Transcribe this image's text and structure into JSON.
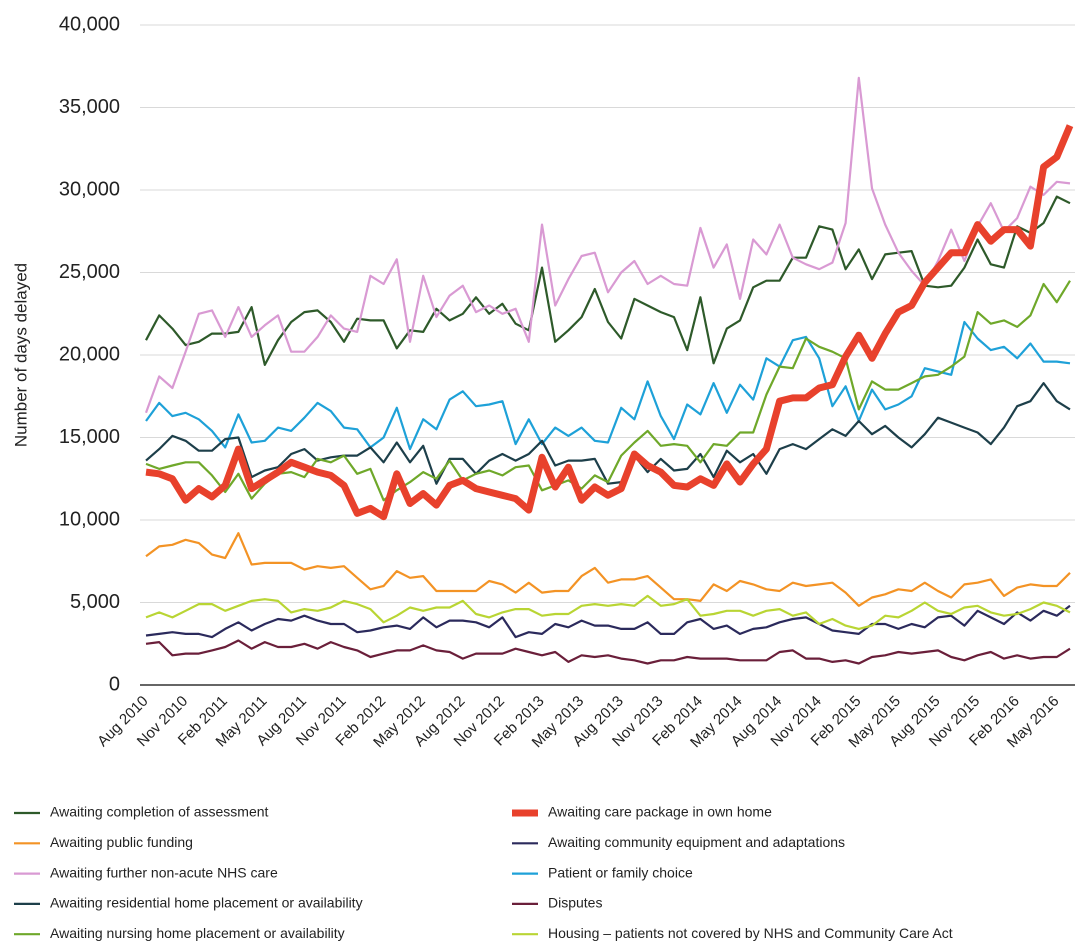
{
  "chart_data": {
    "type": "line",
    "y_label": "Number of days delayed",
    "categories": [
      "Aug 2010",
      null,
      null,
      "Nov 2010",
      null,
      null,
      "Feb 2011",
      null,
      null,
      "May 2011",
      null,
      null,
      "Aug 2011",
      null,
      null,
      "Nov 2011",
      null,
      null,
      "Feb 2012",
      null,
      null,
      "May 2012",
      null,
      null,
      "Aug 2012",
      null,
      null,
      "Nov 2012",
      null,
      null,
      "Feb 2013",
      null,
      null,
      "May 2013",
      null,
      null,
      "Aug 2013",
      null,
      null,
      "Nov 2013",
      null,
      null,
      "Feb 2014",
      null,
      null,
      "May 2014",
      null,
      null,
      "Aug 2014",
      null,
      null,
      "Nov 2014",
      null,
      null,
      "Feb 2015",
      null,
      null,
      "May 2015",
      null,
      null,
      "Aug 2015",
      null,
      null,
      "Nov 2015",
      null,
      null,
      "Feb 2016",
      null,
      null,
      "May 2016",
      null
    ],
    "ylim": [
      0,
      40000
    ],
    "yticks": [
      0,
      {
        "value": 5000,
        "label": "5,000"
      },
      {
        "value": 10000,
        "label": "10,000"
      },
      {
        "value": 15000,
        "label": "15,000"
      },
      {
        "value": 20000,
        "label": "20,000"
      },
      {
        "value": 25000,
        "label": "25,000"
      },
      {
        "value": 30000,
        "label": "30,000"
      },
      {
        "value": 35000,
        "label": "35,000"
      },
      {
        "value": 40000,
        "label": "40,000"
      }
    ],
    "grid": true,
    "series": [
      {
        "name": "Awaiting completion of assessment",
        "color": "#2e5a2a",
        "values": [
          20900,
          22400,
          21600,
          20600,
          20800,
          21300,
          21300,
          21400,
          22900,
          19400,
          20900,
          22000,
          22600,
          22700,
          22000,
          20800,
          22200,
          22100,
          22100,
          20400,
          21500,
          21400,
          22800,
          22100,
          22500,
          23500,
          22500,
          23100,
          21900,
          21500,
          25300,
          20800,
          21500,
          22300,
          24000,
          22000,
          21000,
          23400,
          23000,
          22600,
          22300,
          20300,
          23500,
          19500,
          21600,
          22100,
          24100,
          24500,
          24500,
          25900,
          25900,
          27800,
          27600,
          25200,
          26400,
          24600,
          26100,
          26200,
          26300,
          24200,
          24100,
          24200,
          25300,
          27000,
          25500,
          25300,
          27800,
          27400,
          28000,
          29600,
          29200
        ]
      },
      {
        "name": "Awaiting care package in own home",
        "color": "#e8412c",
        "values": [
          12900,
          12800,
          12500,
          11200,
          11900,
          11400,
          12100,
          14300,
          11900,
          12400,
          12900,
          13500,
          13200,
          12900,
          12700,
          12100,
          10400,
          10700,
          10200,
          12800,
          11000,
          11600,
          10900,
          12100,
          12400,
          11900,
          11700,
          11500,
          11300,
          10600,
          13800,
          12000,
          13200,
          11200,
          12000,
          11500,
          11900,
          14000,
          13300,
          12900,
          12100,
          12000,
          12500,
          12100,
          13400,
          12300,
          13400,
          14300,
          17200,
          17400,
          17400,
          18000,
          18200,
          19900,
          21200,
          19800,
          21300,
          22600,
          23000,
          24400,
          25300,
          26200,
          26200,
          27900,
          26900,
          27600,
          27600,
          26600,
          31400,
          32000,
          33900
        ]
      },
      {
        "name": "Awaiting public funding",
        "color": "#f39325",
        "values": [
          7800,
          8400,
          8500,
          8800,
          8600,
          7900,
          7700,
          9200,
          7300,
          7400,
          7400,
          7400,
          7000,
          7200,
          7100,
          7200,
          6500,
          5800,
          6000,
          6900,
          6500,
          6600,
          5700,
          5700,
          5700,
          5700,
          6300,
          6100,
          5600,
          6200,
          5600,
          5700,
          5700,
          6600,
          7100,
          6200,
          6400,
          6400,
          6600,
          5900,
          5200,
          5200,
          5100,
          6100,
          5700,
          6300,
          6100,
          5800,
          5700,
          6200,
          6000,
          6100,
          6200,
          5600,
          4800,
          5300,
          5500,
          5800,
          5700,
          6200,
          5700,
          5300,
          6100,
          6200,
          6400,
          5400,
          5900,
          6100,
          6000,
          6000,
          6800
        ]
      },
      {
        "name": "Awaiting community equipment and adaptations",
        "color": "#2b2a5c",
        "values": [
          3000,
          3100,
          3200,
          3100,
          3100,
          2900,
          3400,
          3800,
          3300,
          3700,
          4000,
          3900,
          4200,
          3900,
          3700,
          3700,
          3200,
          3300,
          3500,
          3600,
          3400,
          4100,
          3500,
          3900,
          3900,
          3800,
          3500,
          4100,
          2900,
          3200,
          3100,
          3700,
          3500,
          3900,
          3600,
          3600,
          3400,
          3400,
          3800,
          3100,
          3100,
          3800,
          4000,
          3400,
          3600,
          3100,
          3400,
          3500,
          3800,
          4000,
          4100,
          3700,
          3300,
          3200,
          3100,
          3700,
          3700,
          3400,
          3700,
          3500,
          4100,
          4200,
          3600,
          4500,
          4100,
          3700,
          4400,
          3900,
          4500,
          4200,
          4800
        ]
      },
      {
        "name": "Awaiting further non-acute NHS care",
        "color": "#d99ad3",
        "values": [
          16500,
          18700,
          18000,
          20200,
          22500,
          22700,
          21100,
          22900,
          21100,
          21800,
          22400,
          20200,
          20200,
          21100,
          22400,
          21600,
          21400,
          24800,
          24300,
          25800,
          20800,
          24800,
          22300,
          23600,
          24200,
          22600,
          23000,
          22500,
          22800,
          20800,
          27900,
          23000,
          24600,
          26000,
          26200,
          23800,
          25000,
          25700,
          24300,
          24800,
          24300,
          24200,
          27700,
          25300,
          26700,
          23400,
          27000,
          26100,
          27900,
          25900,
          25500,
          25200,
          25600,
          28000,
          36800,
          30100,
          27900,
          26200,
          25100,
          24200,
          25700,
          27600,
          25700,
          27800,
          29200,
          27500,
          28300,
          30200,
          29700,
          30500,
          30400
        ]
      },
      {
        "name": "Patient or family choice",
        "color": "#1ea1d8",
        "values": [
          16000,
          17100,
          16300,
          16500,
          16100,
          15400,
          14400,
          16400,
          14700,
          14800,
          15600,
          15400,
          16200,
          17100,
          16600,
          15600,
          15500,
          14400,
          15000,
          16800,
          14300,
          16100,
          15500,
          17300,
          17800,
          16900,
          17000,
          17200,
          14600,
          16100,
          14600,
          15600,
          15100,
          15600,
          14800,
          14700,
          16800,
          16100,
          18400,
          16300,
          14900,
          17000,
          16400,
          18300,
          16500,
          18200,
          17300,
          19800,
          19300,
          20900,
          21100,
          19800,
          16900,
          18100,
          16000,
          17900,
          16700,
          17000,
          17500,
          19200,
          19000,
          18800,
          22000,
          21000,
          20300,
          20500,
          19800,
          20700,
          19600,
          19600,
          19500
        ]
      },
      {
        "name": "Awaiting residential home placement or availability",
        "color": "#1d3f4a",
        "values": [
          13600,
          14300,
          15100,
          14800,
          14200,
          14200,
          14900,
          15000,
          12600,
          13000,
          13200,
          14000,
          14300,
          13600,
          13800,
          13900,
          13900,
          14400,
          13500,
          14700,
          13500,
          14500,
          12200,
          13700,
          13700,
          12800,
          13600,
          14000,
          13600,
          14000,
          14800,
          13300,
          13600,
          13600,
          13700,
          12200,
          12300,
          13900,
          12900,
          13700,
          13000,
          13100,
          14000,
          12600,
          14200,
          13500,
          14000,
          12800,
          14300,
          14600,
          14300,
          14900,
          15500,
          15100,
          16000,
          15200,
          15700,
          15000,
          14400,
          15200,
          16200,
          15900,
          15600,
          15300,
          14600,
          15600,
          16900,
          17200,
          18300,
          17200,
          16700
        ]
      },
      {
        "name": "Disputes",
        "color": "#6a1f3a",
        "values": [
          2500,
          2600,
          1800,
          1900,
          1900,
          2100,
          2300,
          2700,
          2200,
          2600,
          2300,
          2300,
          2500,
          2200,
          2600,
          2300,
          2100,
          1700,
          1900,
          2100,
          2100,
          2400,
          2100,
          2000,
          1600,
          1900,
          1900,
          1900,
          2200,
          2000,
          1800,
          2000,
          1400,
          1800,
          1700,
          1800,
          1600,
          1500,
          1300,
          1500,
          1500,
          1700,
          1600,
          1600,
          1600,
          1500,
          1500,
          1500,
          2000,
          2100,
          1600,
          1600,
          1400,
          1500,
          1300,
          1700,
          1800,
          2000,
          1900,
          2000,
          2100,
          1700,
          1500,
          1800,
          2000,
          1600,
          1800,
          1600,
          1700,
          1700,
          2200
        ]
      },
      {
        "name": "Awaiting nursing home placement or availability",
        "color": "#6fa82a",
        "values": [
          13400,
          13100,
          13300,
          13500,
          13500,
          12700,
          11700,
          12800,
          11300,
          12200,
          12800,
          12900,
          12600,
          13700,
          13500,
          13900,
          12800,
          13100,
          11200,
          11800,
          12300,
          12900,
          12500,
          13600,
          12400,
          12800,
          13000,
          12700,
          13200,
          13300,
          11800,
          12100,
          12400,
          11900,
          12700,
          12300,
          13900,
          14700,
          15400,
          14500,
          14600,
          14500,
          13500,
          14600,
          14500,
          15300,
          15300,
          17600,
          19300,
          19200,
          21000,
          20500,
          20200,
          19800,
          16700,
          18400,
          17900,
          17900,
          18300,
          18700,
          18800,
          19300,
          19900,
          22600,
          21900,
          22100,
          21700,
          22400,
          24300,
          23200,
          24500
        ]
      },
      {
        "name": "Housing – patients not covered by NHS and Community Care Act",
        "color": "#b9d534",
        "values": [
          4100,
          4400,
          4100,
          4500,
          4900,
          4900,
          4500,
          4800,
          5100,
          5200,
          5100,
          4400,
          4600,
          4500,
          4700,
          5100,
          4900,
          4600,
          3800,
          4200,
          4700,
          4500,
          4700,
          4700,
          5100,
          4300,
          4100,
          4400,
          4600,
          4600,
          4200,
          4300,
          4300,
          4800,
          4900,
          4800,
          4900,
          4800,
          5400,
          4800,
          4900,
          5200,
          4200,
          4300,
          4500,
          4500,
          4200,
          4500,
          4600,
          4200,
          4400,
          3700,
          4000,
          3600,
          3400,
          3600,
          4200,
          4100,
          4500,
          5000,
          4500,
          4300,
          4700,
          4800,
          4400,
          4200,
          4300,
          4600,
          5000,
          4800,
          4400
        ]
      }
    ]
  }
}
